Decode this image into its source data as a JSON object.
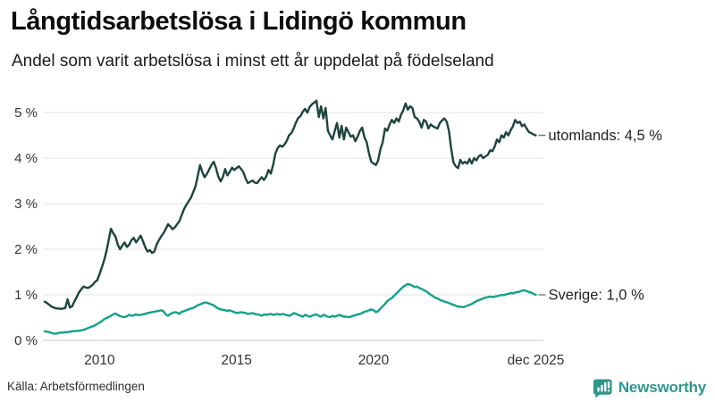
{
  "header": {
    "title": "Långtidsarbetslösa i Lidingö kommun",
    "subtitle": "Andel som varit arbetslösa i minst ett år uppdelat på födelseland"
  },
  "footer": {
    "source": "Källa: Arbetsförmedlingen",
    "logo_text": "Newsworthy"
  },
  "colors": {
    "utomlands_line": "#1c453e",
    "sverige_line": "#13a18c",
    "gridline": "#e3e3e3",
    "baseline": "#c9c9c9",
    "axis_text": "#333333",
    "annotation_text": "#222222",
    "annotation_dash": "#777777",
    "brand_teal": "#2f968b"
  },
  "chart_data": {
    "type": "line",
    "title": "Långtidsarbetslösa i Lidingö kommun",
    "subtitle": "Andel som varit arbetslösa i minst ett år uppdelat på födelseland",
    "unit": "%",
    "grid": "horizontal",
    "legend_position": "end-of-line",
    "x_domain": [
      2008.0,
      2026.0
    ],
    "ylim": [
      0,
      5.3
    ],
    "start": "2008-01",
    "interval": "monthly",
    "y_ticks": [
      {
        "value": 0,
        "label": "0 %"
      },
      {
        "value": 1,
        "label": "1 %"
      },
      {
        "value": 2,
        "label": "2 %"
      },
      {
        "value": 3,
        "label": "3 %"
      },
      {
        "value": 4,
        "label": "4 %"
      },
      {
        "value": 5,
        "label": "5 %"
      }
    ],
    "x_ticks": [
      {
        "value": 2010.0,
        "label": "2010"
      },
      {
        "value": 2015.0,
        "label": "2015"
      },
      {
        "value": 2020.0,
        "label": "2020"
      },
      {
        "value": 2025.917,
        "label": "dec 2025"
      }
    ],
    "series": [
      {
        "name": "utomlands",
        "end_label": "utomlands: 4,5 %",
        "color": "#1c453e",
        "values": [
          0.85,
          0.82,
          0.78,
          0.74,
          0.72,
          0.7,
          0.7,
          0.69,
          0.7,
          0.71,
          0.9,
          0.72,
          0.75,
          0.85,
          0.95,
          1.05,
          1.12,
          1.18,
          1.16,
          1.15,
          1.18,
          1.22,
          1.28,
          1.32,
          1.45,
          1.6,
          1.75,
          1.95,
          2.2,
          2.45,
          2.35,
          2.28,
          2.1,
          2.0,
          2.08,
          2.15,
          2.05,
          2.1,
          2.2,
          2.25,
          2.15,
          2.22,
          2.3,
          2.18,
          2.05,
          1.95,
          1.98,
          1.92,
          1.95,
          2.1,
          2.2,
          2.28,
          2.35,
          2.44,
          2.55,
          2.5,
          2.44,
          2.48,
          2.55,
          2.62,
          2.75,
          2.88,
          2.97,
          3.05,
          3.13,
          3.25,
          3.38,
          3.6,
          3.85,
          3.7,
          3.58,
          3.65,
          3.75,
          3.85,
          3.92,
          3.78,
          3.6,
          3.49,
          3.58,
          3.76,
          3.62,
          3.7,
          3.79,
          3.74,
          3.78,
          3.82,
          3.76,
          3.69,
          3.55,
          3.45,
          3.48,
          3.51,
          3.46,
          3.45,
          3.52,
          3.58,
          3.52,
          3.6,
          3.74,
          3.66,
          3.85,
          4.1,
          4.22,
          4.28,
          4.25,
          4.3,
          4.38,
          4.5,
          4.55,
          4.65,
          4.78,
          4.88,
          4.92,
          5.02,
          5.08,
          5.0,
          5.12,
          5.18,
          5.22,
          5.26,
          4.9,
          5.14,
          4.87,
          5.1,
          4.6,
          4.5,
          4.41,
          4.6,
          4.77,
          4.45,
          4.71,
          4.41,
          4.67,
          4.57,
          4.47,
          4.5,
          4.37,
          4.47,
          4.6,
          4.67,
          4.45,
          4.35,
          4.1,
          3.92,
          3.88,
          3.85,
          3.95,
          4.2,
          4.35,
          4.65,
          4.6,
          4.74,
          4.84,
          4.77,
          4.87,
          4.8,
          4.95,
          5.05,
          5.2,
          5.06,
          5.14,
          5.1,
          4.9,
          4.87,
          4.8,
          4.67,
          4.84,
          4.8,
          4.65,
          4.74,
          4.7,
          4.67,
          4.65,
          4.77,
          4.83,
          4.87,
          4.8,
          4.6,
          4.2,
          3.9,
          3.82,
          3.78,
          3.96,
          3.88,
          3.92,
          3.88,
          3.98,
          3.88,
          4.0,
          3.95,
          4.04,
          4.07,
          4.0,
          4.04,
          4.07,
          4.17,
          4.15,
          4.25,
          4.41,
          4.35,
          4.5,
          4.45,
          4.57,
          4.5,
          4.61,
          4.7,
          4.84,
          4.77,
          4.8,
          4.7,
          4.74,
          4.65,
          4.57,
          4.55,
          4.52,
          4.5
        ]
      },
      {
        "name": "Sverige",
        "end_label": "Sverige: 1,0 %",
        "color": "#13a18c",
        "values": [
          0.2,
          0.19,
          0.18,
          0.16,
          0.15,
          0.15,
          0.16,
          0.17,
          0.17,
          0.18,
          0.18,
          0.19,
          0.2,
          0.2,
          0.21,
          0.21,
          0.22,
          0.23,
          0.25,
          0.27,
          0.29,
          0.31,
          0.33,
          0.36,
          0.39,
          0.42,
          0.46,
          0.49,
          0.51,
          0.54,
          0.57,
          0.59,
          0.56,
          0.53,
          0.52,
          0.51,
          0.53,
          0.56,
          0.54,
          0.55,
          0.57,
          0.55,
          0.56,
          0.57,
          0.58,
          0.6,
          0.61,
          0.62,
          0.63,
          0.64,
          0.65,
          0.66,
          0.64,
          0.57,
          0.54,
          0.58,
          0.6,
          0.62,
          0.61,
          0.58,
          0.63,
          0.64,
          0.66,
          0.68,
          0.7,
          0.71,
          0.74,
          0.77,
          0.79,
          0.81,
          0.83,
          0.83,
          0.81,
          0.79,
          0.77,
          0.73,
          0.7,
          0.68,
          0.67,
          0.66,
          0.65,
          0.66,
          0.64,
          0.62,
          0.6,
          0.61,
          0.62,
          0.61,
          0.6,
          0.58,
          0.59,
          0.6,
          0.58,
          0.57,
          0.56,
          0.54,
          0.57,
          0.56,
          0.57,
          0.58,
          0.56,
          0.57,
          0.58,
          0.56,
          0.58,
          0.57,
          0.55,
          0.54,
          0.56,
          0.6,
          0.58,
          0.56,
          0.54,
          0.52,
          0.56,
          0.54,
          0.52,
          0.54,
          0.56,
          0.57,
          0.54,
          0.52,
          0.56,
          0.54,
          0.52,
          0.51,
          0.54,
          0.52,
          0.54,
          0.56,
          0.54,
          0.52,
          0.52,
          0.51,
          0.52,
          0.54,
          0.55,
          0.57,
          0.58,
          0.6,
          0.63,
          0.64,
          0.66,
          0.68,
          0.66,
          0.62,
          0.64,
          0.7,
          0.75,
          0.8,
          0.86,
          0.9,
          0.93,
          0.98,
          1.03,
          1.08,
          1.13,
          1.18,
          1.21,
          1.24,
          1.22,
          1.2,
          1.17,
          1.18,
          1.15,
          1.13,
          1.1,
          1.08,
          1.04,
          1.0,
          0.97,
          0.94,
          0.92,
          0.89,
          0.87,
          0.85,
          0.84,
          0.82,
          0.8,
          0.78,
          0.76,
          0.74,
          0.74,
          0.73,
          0.74,
          0.76,
          0.78,
          0.8,
          0.83,
          0.86,
          0.88,
          0.9,
          0.92,
          0.94,
          0.95,
          0.96,
          0.95,
          0.96,
          0.97,
          0.98,
          1.0,
          0.99,
          1.01,
          1.02,
          1.04,
          1.03,
          1.05,
          1.06,
          1.07,
          1.09,
          1.1,
          1.08,
          1.06,
          1.05,
          1.02,
          1.0
        ]
      }
    ]
  }
}
